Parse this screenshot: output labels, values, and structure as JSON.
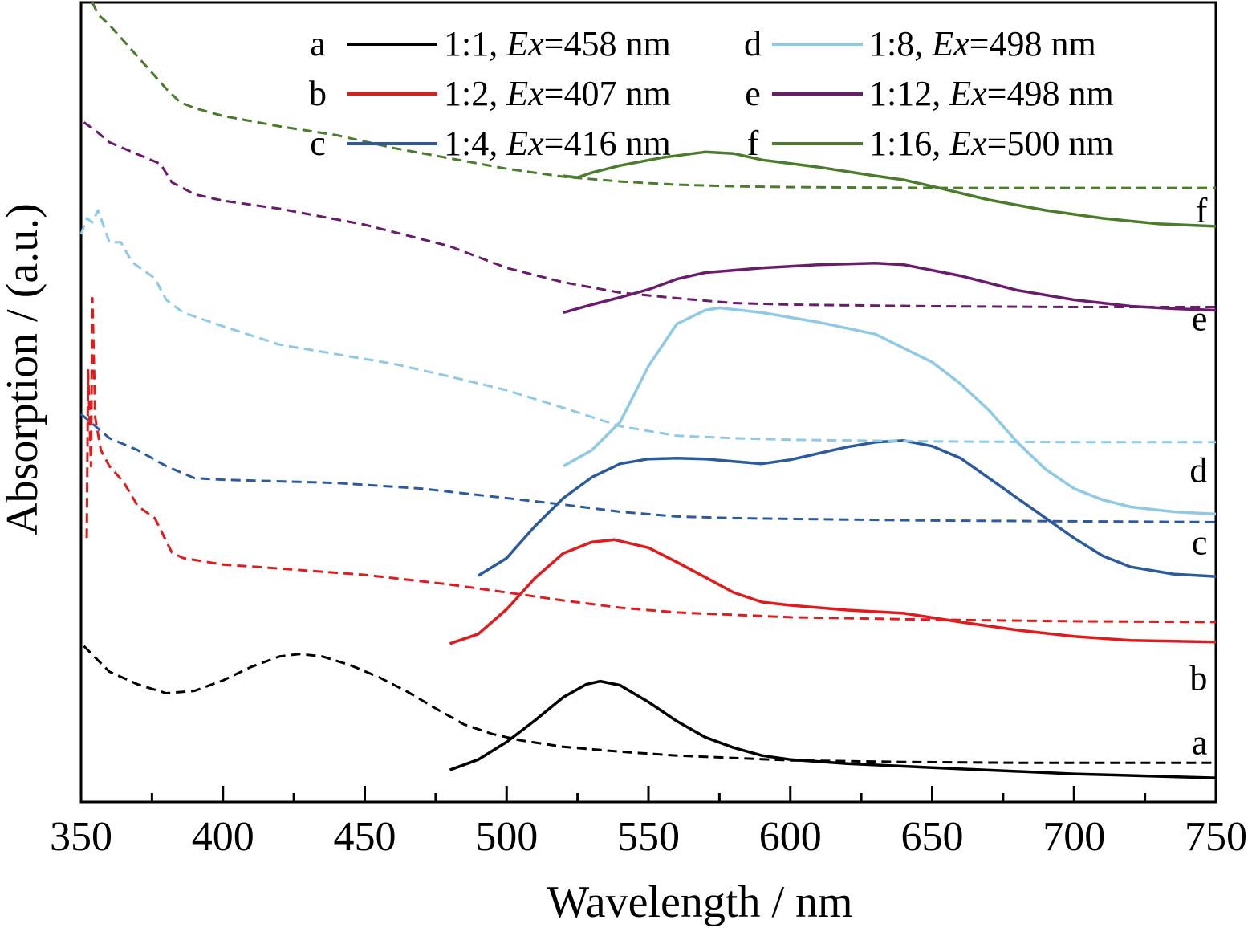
{
  "chart_data": {
    "type": "line",
    "xlabel": "Wavelength / nm",
    "ylabel": "Absorption / (a.u.)",
    "xlim": [
      350,
      750
    ],
    "x_ticks": [
      350,
      400,
      450,
      500,
      550,
      600,
      650,
      700,
      750
    ],
    "x_tick_labels": [
      "350",
      "400",
      "450",
      "500",
      "550",
      "600",
      "650",
      "700",
      "750"
    ],
    "y_ticks_shown": false,
    "grid": false,
    "legend_placement": "top",
    "series": [
      {
        "id": "a",
        "label": "a",
        "ratio": "1:1,",
        "ex_prefix": "Ex",
        "ex_value": "=458 nm",
        "color": "#000000",
        "absorption": [
          [
            351,
            0.195
          ],
          [
            360,
            0.163
          ],
          [
            370,
            0.147
          ],
          [
            380,
            0.136
          ],
          [
            390,
            0.139
          ],
          [
            400,
            0.152
          ],
          [
            410,
            0.169
          ],
          [
            420,
            0.182
          ],
          [
            427,
            0.185
          ],
          [
            435,
            0.182
          ],
          [
            445,
            0.171
          ],
          [
            455,
            0.156
          ],
          [
            465,
            0.138
          ],
          [
            475,
            0.117
          ],
          [
            485,
            0.097
          ],
          [
            495,
            0.085
          ],
          [
            505,
            0.077
          ],
          [
            520,
            0.069
          ],
          [
            540,
            0.063
          ],
          [
            560,
            0.058
          ],
          [
            580,
            0.055
          ],
          [
            600,
            0.052
          ],
          [
            640,
            0.05
          ],
          [
            680,
            0.049
          ],
          [
            720,
            0.049
          ],
          [
            750,
            0.049
          ]
        ],
        "emission": [
          [
            480,
            0.04
          ],
          [
            490,
            0.053
          ],
          [
            500,
            0.075
          ],
          [
            510,
            0.102
          ],
          [
            520,
            0.131
          ],
          [
            528,
            0.147
          ],
          [
            533,
            0.151
          ],
          [
            540,
            0.146
          ],
          [
            550,
            0.125
          ],
          [
            560,
            0.101
          ],
          [
            570,
            0.081
          ],
          [
            580,
            0.068
          ],
          [
            590,
            0.058
          ],
          [
            600,
            0.053
          ],
          [
            620,
            0.048
          ],
          [
            650,
            0.043
          ],
          [
            700,
            0.035
          ],
          [
            750,
            0.03
          ]
        ],
        "label_pos": [
          747,
          0.075
        ]
      },
      {
        "id": "b",
        "label": "b",
        "ratio": "1:2,",
        "ex_prefix": "Ex",
        "ex_value": "=407 nm",
        "color": "#e31a1c",
        "absorption": [
          [
            352,
            0.33
          ],
          [
            352.5,
            0.54
          ],
          [
            353.5,
            0.42
          ],
          [
            354,
            0.63
          ],
          [
            355,
            0.48
          ],
          [
            357,
            0.44
          ],
          [
            360,
            0.42
          ],
          [
            365,
            0.4
          ],
          [
            370,
            0.37
          ],
          [
            376,
            0.355
          ],
          [
            382,
            0.312
          ],
          [
            386,
            0.305
          ],
          [
            400,
            0.297
          ],
          [
            420,
            0.292
          ],
          [
            450,
            0.284
          ],
          [
            480,
            0.272
          ],
          [
            500,
            0.262
          ],
          [
            520,
            0.252
          ],
          [
            540,
            0.243
          ],
          [
            560,
            0.237
          ],
          [
            600,
            0.231
          ],
          [
            650,
            0.228
          ],
          [
            700,
            0.226
          ],
          [
            750,
            0.225
          ]
        ],
        "emission": [
          [
            480,
            0.198
          ],
          [
            490,
            0.21
          ],
          [
            500,
            0.241
          ],
          [
            510,
            0.28
          ],
          [
            520,
            0.311
          ],
          [
            530,
            0.325
          ],
          [
            538,
            0.328
          ],
          [
            550,
            0.318
          ],
          [
            560,
            0.3
          ],
          [
            570,
            0.281
          ],
          [
            580,
            0.262
          ],
          [
            590,
            0.25
          ],
          [
            600,
            0.246
          ],
          [
            620,
            0.24
          ],
          [
            640,
            0.236
          ],
          [
            660,
            0.225
          ],
          [
            680,
            0.215
          ],
          [
            700,
            0.207
          ],
          [
            720,
            0.202
          ],
          [
            750,
            0.2
          ]
        ],
        "label_pos": [
          747,
          0.155
        ]
      },
      {
        "id": "c",
        "label": "c",
        "ratio": "1:4,",
        "ex_prefix": "Ex",
        "ex_value": "=416 nm",
        "color": "#2b5aa0",
        "absorption": [
          [
            350,
            0.485
          ],
          [
            355,
            0.47
          ],
          [
            360,
            0.455
          ],
          [
            370,
            0.44
          ],
          [
            380,
            0.42
          ],
          [
            390,
            0.405
          ],
          [
            400,
            0.403
          ],
          [
            420,
            0.401
          ],
          [
            440,
            0.399
          ],
          [
            470,
            0.392
          ],
          [
            500,
            0.38
          ],
          [
            520,
            0.372
          ],
          [
            540,
            0.363
          ],
          [
            560,
            0.357
          ],
          [
            580,
            0.355
          ],
          [
            600,
            0.354
          ],
          [
            650,
            0.352
          ],
          [
            700,
            0.351
          ],
          [
            750,
            0.35
          ]
        ],
        "emission": [
          [
            490,
            0.283
          ],
          [
            500,
            0.305
          ],
          [
            510,
            0.345
          ],
          [
            520,
            0.38
          ],
          [
            530,
            0.406
          ],
          [
            540,
            0.423
          ],
          [
            550,
            0.429
          ],
          [
            560,
            0.43
          ],
          [
            570,
            0.429
          ],
          [
            580,
            0.426
          ],
          [
            590,
            0.423
          ],
          [
            600,
            0.428
          ],
          [
            610,
            0.436
          ],
          [
            620,
            0.444
          ],
          [
            630,
            0.45
          ],
          [
            640,
            0.452
          ],
          [
            650,
            0.445
          ],
          [
            660,
            0.43
          ],
          [
            670,
            0.405
          ],
          [
            680,
            0.38
          ],
          [
            690,
            0.355
          ],
          [
            700,
            0.33
          ],
          [
            710,
            0.308
          ],
          [
            720,
            0.294
          ],
          [
            735,
            0.285
          ],
          [
            750,
            0.282
          ]
        ],
        "label_pos": [
          747,
          0.325
        ]
      },
      {
        "id": "d",
        "label": "d",
        "ratio": "1:8,",
        "ex_prefix": "Ex",
        "ex_value": "=498 nm",
        "color": "#8ecae6",
        "absorption": [
          [
            350,
            0.71
          ],
          [
            352,
            0.73
          ],
          [
            354,
            0.725
          ],
          [
            356,
            0.74
          ],
          [
            358,
            0.72
          ],
          [
            360,
            0.7
          ],
          [
            364,
            0.7
          ],
          [
            368,
            0.675
          ],
          [
            372,
            0.665
          ],
          [
            376,
            0.655
          ],
          [
            380,
            0.628
          ],
          [
            386,
            0.612
          ],
          [
            400,
            0.595
          ],
          [
            420,
            0.572
          ],
          [
            440,
            0.56
          ],
          [
            460,
            0.548
          ],
          [
            480,
            0.532
          ],
          [
            500,
            0.515
          ],
          [
            520,
            0.493
          ],
          [
            540,
            0.47
          ],
          [
            560,
            0.458
          ],
          [
            580,
            0.455
          ],
          [
            600,
            0.453
          ],
          [
            650,
            0.451
          ],
          [
            700,
            0.45
          ],
          [
            750,
            0.45
          ]
        ],
        "emission": [
          [
            520,
            0.42
          ],
          [
            530,
            0.44
          ],
          [
            540,
            0.475
          ],
          [
            550,
            0.545
          ],
          [
            560,
            0.598
          ],
          [
            570,
            0.615
          ],
          [
            575,
            0.618
          ],
          [
            590,
            0.612
          ],
          [
            610,
            0.6
          ],
          [
            630,
            0.585
          ],
          [
            650,
            0.55
          ],
          [
            660,
            0.523
          ],
          [
            670,
            0.49
          ],
          [
            680,
            0.45
          ],
          [
            690,
            0.416
          ],
          [
            700,
            0.392
          ],
          [
            710,
            0.378
          ],
          [
            720,
            0.369
          ],
          [
            735,
            0.363
          ],
          [
            750,
            0.36
          ]
        ],
        "label_pos": [
          747,
          0.415
        ]
      },
      {
        "id": "e",
        "label": "e",
        "ratio": "1:12,",
        "ex_prefix": "Ex",
        "ex_value": "=498 nm",
        "color": "#6a1b6e",
        "absorption": [
          [
            351,
            0.85
          ],
          [
            355,
            0.84
          ],
          [
            360,
            0.825
          ],
          [
            370,
            0.81
          ],
          [
            378,
            0.798
          ],
          [
            382,
            0.775
          ],
          [
            390,
            0.76
          ],
          [
            400,
            0.752
          ],
          [
            420,
            0.742
          ],
          [
            450,
            0.722
          ],
          [
            480,
            0.695
          ],
          [
            500,
            0.668
          ],
          [
            520,
            0.65
          ],
          [
            540,
            0.637
          ],
          [
            560,
            0.63
          ],
          [
            580,
            0.624
          ],
          [
            600,
            0.622
          ],
          [
            650,
            0.62
          ],
          [
            700,
            0.619
          ],
          [
            750,
            0.619
          ]
        ],
        "emission": [
          [
            520,
            0.612
          ],
          [
            530,
            0.622
          ],
          [
            540,
            0.631
          ],
          [
            550,
            0.641
          ],
          [
            560,
            0.654
          ],
          [
            570,
            0.662
          ],
          [
            590,
            0.668
          ],
          [
            610,
            0.672
          ],
          [
            630,
            0.674
          ],
          [
            640,
            0.672
          ],
          [
            660,
            0.658
          ],
          [
            680,
            0.64
          ],
          [
            700,
            0.628
          ],
          [
            720,
            0.62
          ],
          [
            735,
            0.617
          ],
          [
            750,
            0.615
          ]
        ],
        "label_pos": [
          747,
          0.605
        ]
      },
      {
        "id": "f",
        "label": "f",
        "ratio": "1:16,",
        "ex_prefix": "Ex",
        "ex_value": "=500 nm",
        "color": "#4a7c2a",
        "absorption": [
          [
            354,
            1.0
          ],
          [
            356,
            0.985
          ],
          [
            360,
            0.972
          ],
          [
            365,
            0.952
          ],
          [
            370,
            0.932
          ],
          [
            375,
            0.912
          ],
          [
            380,
            0.892
          ],
          [
            385,
            0.875
          ],
          [
            390,
            0.868
          ],
          [
            400,
            0.858
          ],
          [
            420,
            0.845
          ],
          [
            440,
            0.834
          ],
          [
            460,
            0.818
          ],
          [
            480,
            0.805
          ],
          [
            500,
            0.792
          ],
          [
            520,
            0.782
          ],
          [
            540,
            0.776
          ],
          [
            560,
            0.772
          ],
          [
            580,
            0.77
          ],
          [
            600,
            0.769
          ],
          [
            650,
            0.768
          ],
          [
            700,
            0.768
          ],
          [
            750,
            0.768
          ]
        ],
        "emission": [
          [
            520,
            0.783
          ],
          [
            525,
            0.781
          ],
          [
            530,
            0.787
          ],
          [
            540,
            0.796
          ],
          [
            555,
            0.806
          ],
          [
            570,
            0.813
          ],
          [
            580,
            0.811
          ],
          [
            590,
            0.803
          ],
          [
            610,
            0.794
          ],
          [
            630,
            0.783
          ],
          [
            640,
            0.778
          ],
          [
            650,
            0.77
          ],
          [
            670,
            0.753
          ],
          [
            690,
            0.74
          ],
          [
            710,
            0.73
          ],
          [
            730,
            0.723
          ],
          [
            750,
            0.72
          ]
        ],
        "label_pos": [
          747,
          0.74
        ]
      }
    ]
  }
}
